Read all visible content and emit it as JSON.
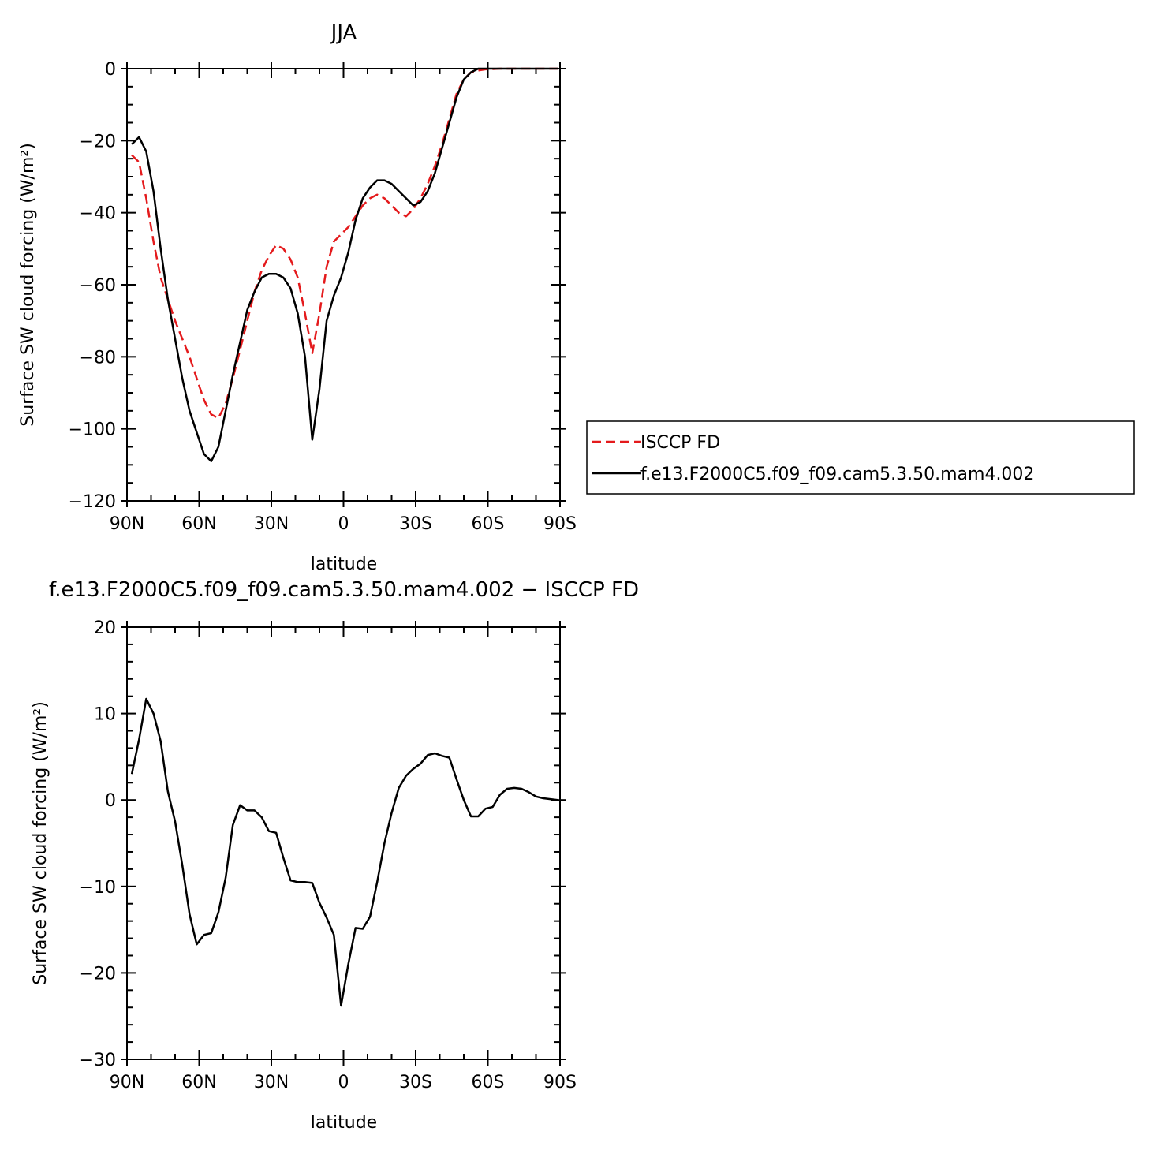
{
  "colors": {
    "model": "#000000",
    "obs": "#e41a1c",
    "axis": "#000000",
    "background": "#ffffff"
  },
  "chart_data": [
    {
      "type": "line",
      "title": "JJA",
      "xlabel": "latitude",
      "ylabel": "Surface SW cloud forcing (W/m²)",
      "xlim": [
        90,
        -90
      ],
      "ylim": [
        -120,
        0
      ],
      "x_tick_values": [
        90,
        60,
        30,
        0,
        -30,
        -60,
        -90
      ],
      "x_tick_labels": [
        "90N",
        "60N",
        "30N",
        "0",
        "30S",
        "60S",
        "90S"
      ],
      "y_tick_values": [
        0,
        -20,
        -40,
        -60,
        -80,
        -100,
        -120
      ],
      "y_tick_labels": [
        "0",
        "−20",
        "−40",
        "−60",
        "−80",
        "−100",
        "−120"
      ],
      "grid": false,
      "legend_position": "right",
      "series": [
        {
          "name": "ISCCP FD",
          "style": "dashed",
          "color": "#e41a1c",
          "x": [
            88,
            85,
            82,
            79,
            76,
            73,
            70,
            67,
            64,
            61,
            58,
            55,
            52,
            49,
            46,
            43,
            40,
            37,
            34,
            31,
            28,
            25,
            22,
            19,
            16,
            13,
            10,
            7,
            4,
            1,
            -2,
            -5,
            -8,
            -11,
            -14,
            -17,
            -20,
            -23,
            -26,
            -29,
            -32,
            -35,
            -38,
            -41,
            -44,
            -47,
            -50,
            -53,
            -56,
            -59,
            -62,
            -65,
            -68,
            -71,
            -74,
            -77,
            -80,
            -83,
            -86,
            -89
          ],
          "y": [
            -24,
            -26,
            -36,
            -48,
            -58,
            -64,
            -70,
            -75,
            -80,
            -86,
            -92,
            -96,
            -97,
            -93,
            -86,
            -78,
            -70,
            -62,
            -56,
            -52,
            -49,
            -50,
            -53,
            -58,
            -68,
            -79,
            -68,
            -55,
            -48,
            -46,
            -44,
            -41,
            -38,
            -36,
            -35,
            -36,
            -38,
            -40,
            -41,
            -39,
            -36,
            -32,
            -27,
            -21,
            -14,
            -7,
            -3,
            -1,
            -0.5,
            -0.2,
            -0.1,
            0,
            0,
            0,
            0,
            0,
            0,
            0,
            0,
            0
          ]
        },
        {
          "name": "f.e13.F2000C5.f09_f09.cam5.3.50.mam4.002",
          "style": "solid",
          "color": "#000000",
          "x": [
            88,
            85,
            82,
            79,
            76,
            73,
            70,
            67,
            64,
            61,
            58,
            55,
            52,
            49,
            46,
            43,
            40,
            37,
            34,
            31,
            28,
            25,
            22,
            19,
            16,
            13,
            10,
            7,
            4,
            1,
            -2,
            -5,
            -8,
            -11,
            -14,
            -17,
            -20,
            -23,
            -26,
            -29,
            -32,
            -35,
            -38,
            -41,
            -44,
            -47,
            -50,
            -53,
            -56,
            -59,
            -62,
            -65,
            -68,
            -71,
            -74,
            -77,
            -80,
            -83,
            -86,
            -89
          ],
          "y": [
            -21,
            -19,
            -23,
            -34,
            -50,
            -64,
            -75,
            -86,
            -95,
            -101,
            -107,
            -109,
            -105,
            -95,
            -85,
            -76,
            -67,
            -62,
            -58,
            -57,
            -57,
            -58,
            -61,
            -68,
            -80,
            -103,
            -89,
            -70,
            -63,
            -58,
            -51,
            -42,
            -36,
            -33,
            -31,
            -31,
            -32,
            -34,
            -36,
            -38,
            -37,
            -34,
            -29,
            -22,
            -15,
            -8,
            -3,
            -1,
            0,
            0,
            0,
            0,
            0,
            0,
            0,
            0,
            0,
            0,
            0,
            0
          ]
        }
      ]
    },
    {
      "type": "line",
      "title": "f.e13.F2000C5.f09_f09.cam5.3.50.mam4.002 − ISCCP FD",
      "xlabel": "latitude",
      "ylabel": "Surface SW cloud forcing (W/m²)",
      "xlim": [
        90,
        -90
      ],
      "ylim": [
        -30,
        20
      ],
      "x_tick_values": [
        90,
        60,
        30,
        0,
        -30,
        -60,
        -90
      ],
      "x_tick_labels": [
        "90N",
        "60N",
        "30N",
        "0",
        "30S",
        "60S",
        "90S"
      ],
      "y_tick_values": [
        20,
        10,
        0,
        -10,
        -20,
        -30
      ],
      "y_tick_labels": [
        "20",
        "10",
        "0",
        "−10",
        "−20",
        "−30"
      ],
      "grid": false,
      "series": [
        {
          "style": "solid",
          "color": "#000000",
          "x": [
            88,
            85,
            82,
            79,
            76,
            73,
            70,
            67,
            64,
            61,
            58,
            55,
            52,
            49,
            46,
            43,
            40,
            37,
            34,
            31,
            28,
            25,
            22,
            19,
            16,
            13,
            10,
            7,
            4,
            1,
            -2,
            -5,
            -8,
            -11,
            -14,
            -17,
            -20,
            -23,
            -26,
            -29,
            -32,
            -35,
            -38,
            -41,
            -44,
            -47,
            -50,
            -53,
            -56,
            -59,
            -62,
            -65,
            -68,
            -71,
            -74,
            -77,
            -80,
            -83,
            -86,
            -89
          ],
          "y": [
            3,
            7,
            11.7,
            10,
            6.8,
            1,
            -2.5,
            -7.5,
            -13.2,
            -16.7,
            -15.6,
            -15.4,
            -13,
            -9,
            -2.9,
            -0.6,
            -1.2,
            -1.2,
            -2,
            -3.6,
            -3.8,
            -6.7,
            -9.3,
            -9.5,
            -9.5,
            -9.6,
            -11.9,
            -13.6,
            -15.6,
            -23.8,
            -19,
            -14.8,
            -14.9,
            -13.5,
            -9.5,
            -5,
            -1.5,
            1.4,
            2.8,
            3.6,
            4.2,
            5.2,
            5.4,
            5.1,
            4.9,
            2.4,
            0,
            -1.9,
            -1.9,
            -1,
            -0.8,
            0.6,
            1.3,
            1.4,
            1.3,
            0.9,
            0.4,
            0.2,
            0.1,
            0
          ]
        }
      ]
    }
  ]
}
